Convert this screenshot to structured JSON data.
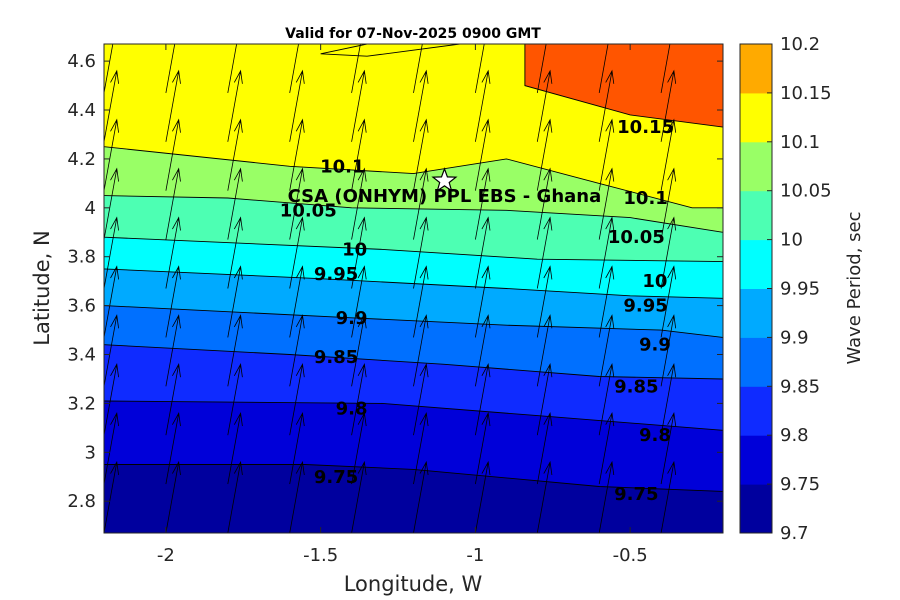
{
  "chart_data": {
    "type": "contour",
    "title": "Valid for 07-Nov-2025 0900 GMT",
    "xlabel": "Longitude, W",
    "ylabel": "Latitude, N",
    "xlim": [
      -2.2,
      -0.2
    ],
    "ylim": [
      2.67,
      4.67
    ],
    "x_ticks": [
      -2,
      -1.5,
      -1,
      -0.5
    ],
    "x_tick_labels": [
      "-2",
      "-1.5",
      "-1",
      "-0.5"
    ],
    "y_ticks": [
      2.8,
      3.0,
      3.2,
      3.4,
      3.6,
      3.8,
      4.0,
      4.2,
      4.4,
      4.6
    ],
    "y_tick_labels": [
      "2.8",
      "3",
      "3.2",
      "3.4",
      "3.6",
      "3.8",
      "4",
      "4.2",
      "4.4",
      "4.6"
    ],
    "colorbar": {
      "label": "Wave Period, sec",
      "levels": [
        9.7,
        9.75,
        9.8,
        9.85,
        9.9,
        9.95,
        10.0,
        10.05,
        10.1,
        10.15,
        10.2
      ],
      "tick_labels": [
        "9.7",
        "9.75",
        "9.8",
        "9.85",
        "9.9",
        "9.95",
        "10",
        "10.05",
        "10.1",
        "10.15",
        "10.2"
      ],
      "colors": [
        "#00009e",
        "#0000d9",
        "#0f2bff",
        "#0070ff",
        "#00aaff",
        "#00ffff",
        "#4dffb3",
        "#99ff66",
        "#ffff00",
        "#ffaa00",
        "#ff5500"
      ]
    },
    "contour_levels": [
      9.75,
      9.8,
      9.85,
      9.9,
      9.95,
      10.0,
      10.05,
      10.1,
      10.15
    ],
    "contour_lines": [
      {
        "level": 9.75,
        "points": [
          [
            -2.2,
            2.95
          ],
          [
            -1.55,
            2.95
          ],
          [
            -1.2,
            2.93
          ],
          [
            -0.6,
            2.86
          ],
          [
            -0.2,
            2.84
          ]
        ]
      },
      {
        "level": 9.8,
        "points": [
          [
            -2.2,
            3.21
          ],
          [
            -1.3,
            3.2
          ],
          [
            -0.8,
            3.15
          ],
          [
            -0.2,
            3.09
          ]
        ]
      },
      {
        "level": 9.85,
        "points": [
          [
            -2.2,
            3.44
          ],
          [
            -1.6,
            3.4
          ],
          [
            -1.1,
            3.36
          ],
          [
            -0.6,
            3.31
          ],
          [
            -0.2,
            3.3
          ]
        ]
      },
      {
        "level": 9.9,
        "points": [
          [
            -2.2,
            3.6
          ],
          [
            -1.4,
            3.55
          ],
          [
            -0.9,
            3.52
          ],
          [
            -0.4,
            3.5
          ],
          [
            -0.2,
            3.47
          ]
        ]
      },
      {
        "level": 9.95,
        "points": [
          [
            -2.2,
            3.75
          ],
          [
            -1.5,
            3.71
          ],
          [
            -0.9,
            3.67
          ],
          [
            -0.5,
            3.64
          ],
          [
            -0.2,
            3.63
          ]
        ]
      },
      {
        "level": 10.0,
        "points": [
          [
            -2.2,
            3.88
          ],
          [
            -1.3,
            3.83
          ],
          [
            -0.8,
            3.79
          ],
          [
            -0.2,
            3.78
          ]
        ]
      },
      {
        "level": 10.05,
        "points": [
          [
            -2.2,
            4.05
          ],
          [
            -1.8,
            4.04
          ],
          [
            -1.4,
            4.0
          ],
          [
            -0.9,
            3.99
          ],
          [
            -0.5,
            3.96
          ],
          [
            -0.2,
            3.9
          ]
        ]
      },
      {
        "level": 10.1,
        "points": [
          [
            -2.2,
            4.25
          ],
          [
            -1.6,
            4.17
          ],
          [
            -1.2,
            4.14
          ],
          [
            -0.9,
            4.2
          ],
          [
            -0.6,
            4.1
          ],
          [
            -0.3,
            4.0
          ],
          [
            -0.2,
            4.0
          ]
        ]
      },
      {
        "level": 10.15,
        "points": [
          [
            -0.84,
            4.67
          ],
          [
            -0.84,
            4.5
          ],
          [
            -0.5,
            4.38
          ],
          [
            -0.2,
            4.33
          ]
        ]
      }
    ],
    "max_region_outline": [
      [
        -1.35,
        4.67
      ],
      [
        -1.5,
        4.63
      ],
      [
        -1.35,
        4.62
      ],
      [
        -1.05,
        4.67
      ]
    ],
    "contour_labels": [
      {
        "text": "9.75",
        "x": -1.45,
        "y": 2.9
      },
      {
        "text": "9.8",
        "x": -1.4,
        "y": 3.18
      },
      {
        "text": "9.85",
        "x": -1.45,
        "y": 3.39
      },
      {
        "text": "9.9",
        "x": -1.4,
        "y": 3.55
      },
      {
        "text": "9.95",
        "x": -1.45,
        "y": 3.73
      },
      {
        "text": "10",
        "x": -1.39,
        "y": 3.83
      },
      {
        "text": "10.05",
        "x": -1.54,
        "y": 3.99
      },
      {
        "text": "10.1",
        "x": -1.43,
        "y": 4.17
      },
      {
        "text": "9.75",
        "x": -0.48,
        "y": 2.83
      },
      {
        "text": "9.8",
        "x": -0.42,
        "y": 3.07
      },
      {
        "text": "9.85",
        "x": -0.48,
        "y": 3.27
      },
      {
        "text": "9.9",
        "x": -0.42,
        "y": 3.44
      },
      {
        "text": "9.95",
        "x": -0.45,
        "y": 3.6
      },
      {
        "text": "10",
        "x": -0.42,
        "y": 3.7
      },
      {
        "text": "10.05",
        "x": -0.48,
        "y": 3.88
      },
      {
        "text": "10.1",
        "x": -0.45,
        "y": 4.04
      },
      {
        "text": "10.15",
        "x": -0.45,
        "y": 4.33
      }
    ],
    "annotation": {
      "label": "CSA (ONHYM) PPL EBS  - Ghana",
      "marker": "star",
      "x": -1.1,
      "y": 4.11
    },
    "vector_field": {
      "description": "wave direction arrows, pointing roughly north-northeast",
      "x": [
        -2.2,
        -2.0,
        -1.8,
        -1.6,
        -1.4,
        -1.2,
        -1.0,
        -0.8,
        -0.6,
        -0.4
      ],
      "y": [
        2.67,
        2.87,
        3.07,
        3.27,
        3.47,
        3.67,
        3.87,
        4.07,
        4.27,
        4.47
      ],
      "u": 0.18,
      "v": 1.0
    }
  }
}
